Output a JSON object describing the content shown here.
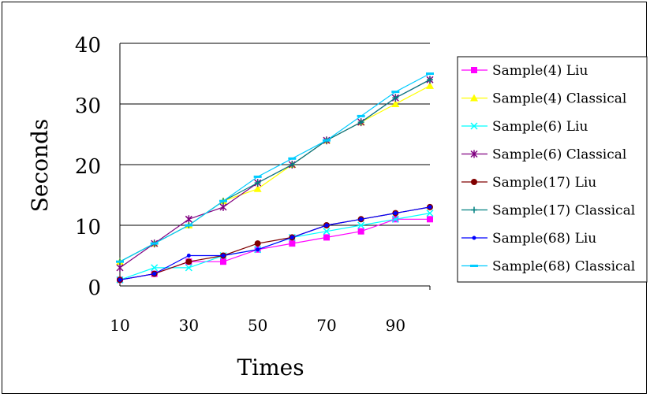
{
  "chart_data": {
    "type": "line",
    "title": "",
    "xlabel": "Times",
    "ylabel": "Seconds",
    "x": [
      10,
      20,
      30,
      40,
      50,
      60,
      70,
      80,
      90,
      100
    ],
    "x_tick_labels": [
      "10",
      "30",
      "50",
      "70",
      "90"
    ],
    "x_tick_values": [
      10,
      30,
      50,
      70,
      90
    ],
    "ylim": [
      0,
      40
    ],
    "y_ticks": [
      0,
      10,
      20,
      30,
      40
    ],
    "grid": "horizontal",
    "legend_position": "right",
    "series": [
      {
        "name": "Sample(4) Liu",
        "color": "#ff00ff",
        "marker": "square",
        "values": [
          1,
          2,
          4,
          4,
          6,
          7,
          8,
          9,
          11,
          11
        ]
      },
      {
        "name": "Sample(4) Classical",
        "color": "#ffff00",
        "marker": "triangle",
        "values": [
          4,
          7,
          10,
          14,
          16,
          20,
          24,
          27,
          30,
          33
        ]
      },
      {
        "name": "Sample(6) Liu",
        "color": "#00ffff",
        "marker": "x",
        "values": [
          1,
          3,
          3,
          5,
          6,
          8,
          9,
          10,
          11,
          12
        ]
      },
      {
        "name": "Sample(6) Classical",
        "color": "#800080",
        "marker": "asterisk",
        "values": [
          3,
          7,
          11,
          13,
          17,
          20,
          24,
          27,
          31,
          34
        ]
      },
      {
        "name": "Sample(17) Liu",
        "color": "#800000",
        "marker": "circle",
        "values": [
          1,
          2,
          4,
          5,
          7,
          8,
          10,
          11,
          12,
          13
        ]
      },
      {
        "name": "Sample(17) Classical",
        "color": "#008080",
        "marker": "plus",
        "values": [
          4,
          7,
          10,
          14,
          17,
          20,
          24,
          27,
          31,
          34
        ]
      },
      {
        "name": "Sample(68) Liu",
        "color": "#0000ff",
        "marker": "dot",
        "values": [
          1,
          2,
          5,
          5,
          6,
          8,
          10,
          11,
          12,
          13
        ]
      },
      {
        "name": "Sample(68) Classical",
        "color": "#00ccff",
        "marker": "dash",
        "values": [
          4,
          7,
          10,
          14,
          18,
          21,
          24,
          28,
          32,
          35
        ]
      }
    ]
  }
}
